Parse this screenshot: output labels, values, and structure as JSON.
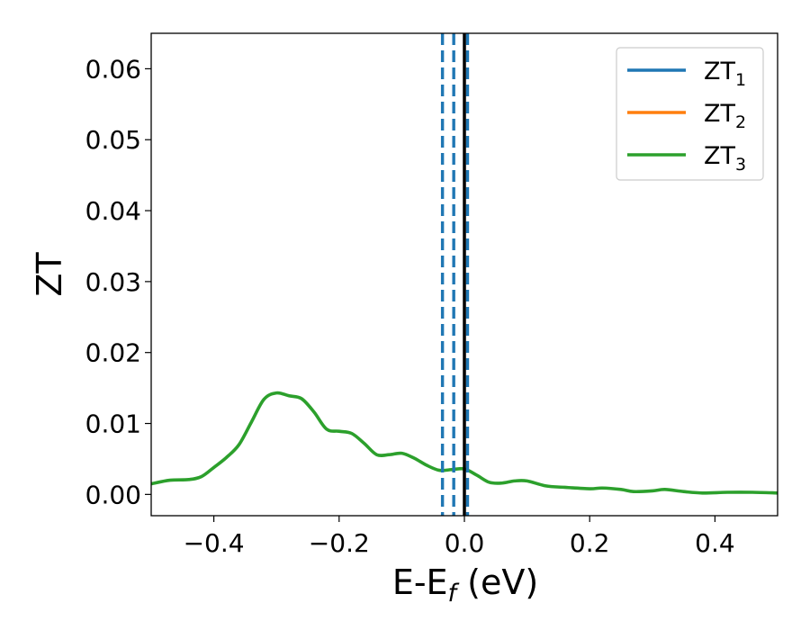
{
  "chart_data": {
    "type": "line",
    "xlabel": "E-E",
    "xlabel_sub": "f",
    "xlabel_unit": "(eV)",
    "ylabel": "ZT",
    "xlim": [
      -0.5,
      0.5
    ],
    "ylim": [
      -0.003,
      0.065
    ],
    "xticks": [
      -0.4,
      -0.2,
      0.0,
      0.2,
      0.4
    ],
    "xtick_labels": [
      "−0.4",
      "−0.2",
      "0.0",
      "0.2",
      "0.4"
    ],
    "yticks": [
      0.0,
      0.01,
      0.02,
      0.03,
      0.04,
      0.05,
      0.06
    ],
    "ytick_labels": [
      "0.00",
      "0.01",
      "0.02",
      "0.03",
      "0.04",
      "0.05",
      "0.06"
    ],
    "grid": false,
    "legend_position": "top-right",
    "series": [
      {
        "name": "ZT",
        "name_sub": "1",
        "color": "#1f77b4",
        "x": [],
        "y": []
      },
      {
        "name": "ZT",
        "name_sub": "2",
        "color": "#ff7f0e",
        "x": [],
        "y": []
      },
      {
        "name": "ZT",
        "name_sub": "3",
        "color": "#2ca02c",
        "x": [
          -0.5,
          -0.47,
          -0.44,
          -0.42,
          -0.4,
          -0.38,
          -0.36,
          -0.34,
          -0.32,
          -0.3,
          -0.28,
          -0.26,
          -0.24,
          -0.22,
          -0.2,
          -0.18,
          -0.16,
          -0.14,
          -0.12,
          -0.1,
          -0.08,
          -0.06,
          -0.04,
          -0.02,
          0.0,
          0.02,
          0.04,
          0.06,
          0.08,
          0.1,
          0.13,
          0.16,
          0.2,
          0.22,
          0.25,
          0.27,
          0.3,
          0.32,
          0.35,
          0.38,
          0.42,
          0.46,
          0.5
        ],
        "y": [
          0.0015,
          0.002,
          0.0021,
          0.0025,
          0.0038,
          0.0052,
          0.007,
          0.0102,
          0.0134,
          0.0143,
          0.0139,
          0.0135,
          0.0116,
          0.0092,
          0.0089,
          0.0086,
          0.0072,
          0.0056,
          0.0056,
          0.0058,
          0.0051,
          0.0041,
          0.0034,
          0.0035,
          0.0036,
          0.0027,
          0.0017,
          0.0016,
          0.0019,
          0.0019,
          0.0012,
          0.001,
          0.0008,
          0.0009,
          0.0007,
          0.0004,
          0.0005,
          0.0007,
          0.0004,
          0.0002,
          0.0003,
          0.0003,
          0.0002
        ]
      }
    ],
    "vertical_lines": [
      {
        "x": -0.035,
        "color": "#1f77b4",
        "style": "dashed"
      },
      {
        "x": -0.017,
        "color": "#1f77b4",
        "style": "dashed"
      },
      {
        "x": 0.005,
        "color": "#1f77b4",
        "style": "dashed"
      },
      {
        "x": 0.0,
        "color": "#000000",
        "style": "solid"
      }
    ]
  }
}
